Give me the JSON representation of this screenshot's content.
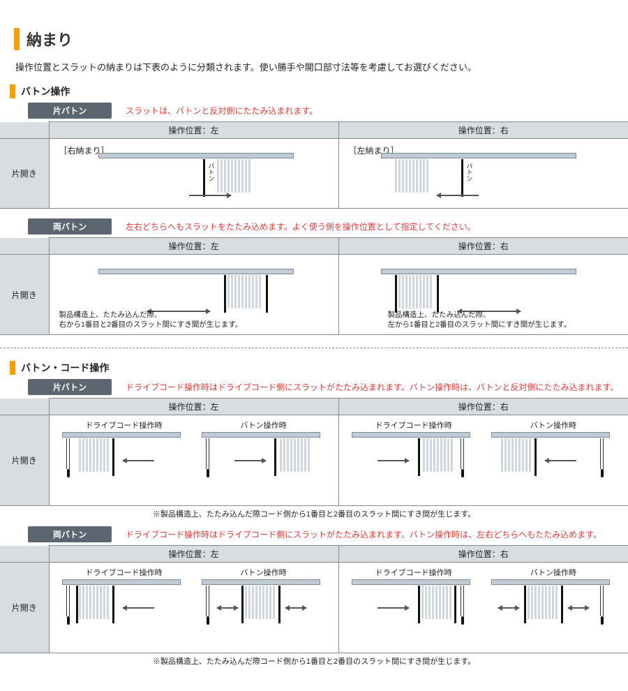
{
  "title": "納まり",
  "intro": "操作位置とスラットの納まりは下表のように分類されます。使い勝手や開口部寸法等を考慮してお選びください。",
  "colors": {
    "accent": "#f59e0b",
    "pill_bg": "#5b6670",
    "header_bg": "#d8dde2",
    "rail": "#c1cbd6",
    "rail_border": "#7c8a9a",
    "slat": "#cfd6de",
    "red": "#e53935",
    "border": "#888888"
  },
  "section1": {
    "header": "バトン操作",
    "block1": {
      "pill": "片バトン",
      "note": "スラットは、バトンと反対側にたたみ込まれます。",
      "col_left": "操作位置：左",
      "col_right": "操作位置：右",
      "row_label": "片開き",
      "left_bracket": "［右納まり］",
      "right_bracket": "［左納まり］",
      "baton_label": "バトン"
    },
    "block2": {
      "pill": "両バトン",
      "note": "左右どちらへもスラットをたたみ込めます。よく使う側を操作位置として指定してください。",
      "col_left": "操作位置：左",
      "col_right": "操作位置：右",
      "row_label": "片開き",
      "left_small": "製品構造上、たたみ込んだ際、\n右から1番目と2番目のスラット間にすき間が生じます。",
      "right_small": "製品構造上、たたみ込んだ際、\n左から1番目と2番目のスラット間にすき間が生じます。"
    }
  },
  "section2": {
    "header": "バトン・コード操作",
    "block1": {
      "pill": "片バトン",
      "note": "ドライブコード操作時はドライブコード側にスラットがたたみ込まれます。バトン操作時は、バトンと反対側にたたみ込まれます。",
      "col_left": "操作位置：左",
      "col_right": "操作位置：右",
      "row_label": "片開き",
      "sub_a": "ドライブコード操作時",
      "sub_b": "バトン操作時",
      "bottom_note": "※製品構造上、たたみ込んだ際コード側から1番目と2番目のスラット間にすき間が生じます。"
    },
    "block2": {
      "pill": "両バトン",
      "note": "ドライブコード操作時はドライブコード側にスラットがたたみ込まれます。バトン操作時は、左右どちらへもたたみ込めます。",
      "col_left": "操作位置：左",
      "col_right": "操作位置：右",
      "row_label": "片開き",
      "sub_a": "ドライブコード操作時",
      "sub_b": "バトン操作時",
      "bottom_note": "※製品構造上、たたみ込んだ際コード側から1番目と2番目のスラット間にすき間が生じます。"
    }
  }
}
